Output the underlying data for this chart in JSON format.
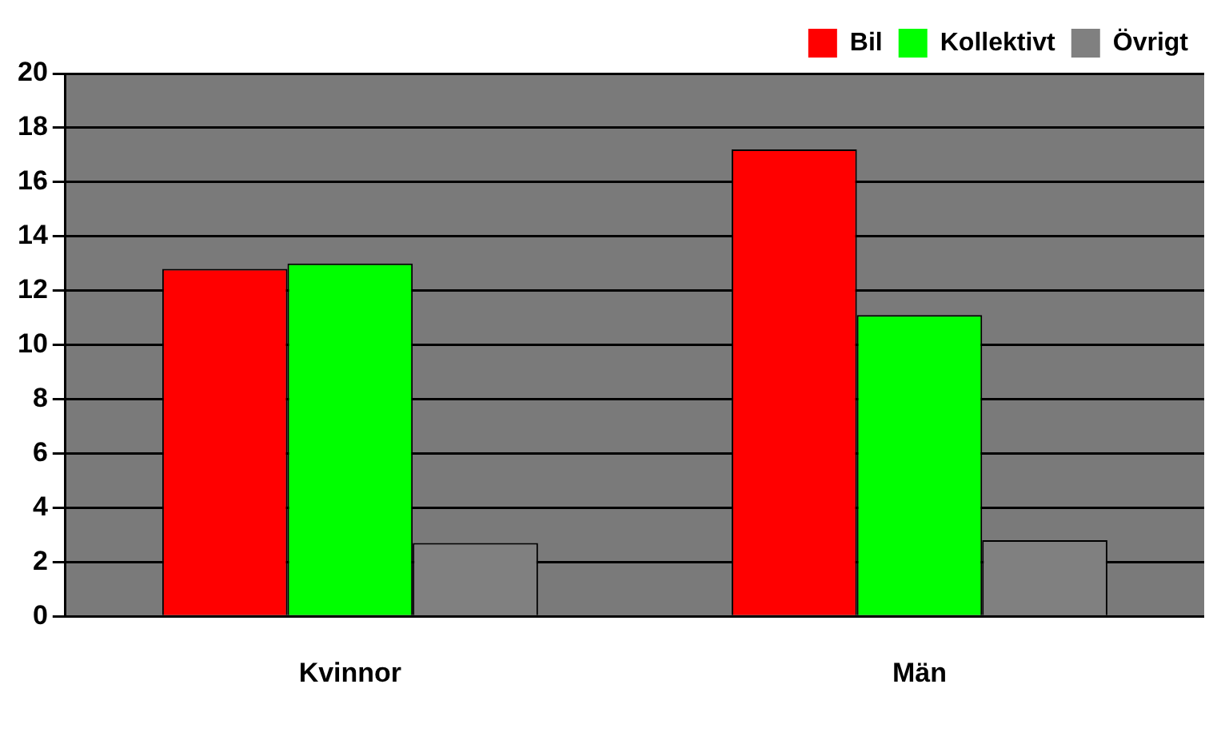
{
  "chart_data": {
    "type": "bar",
    "categories": [
      "Kvinnor",
      "Män"
    ],
    "series": [
      {
        "name": "Bil",
        "color": "#ff0000",
        "values": [
          12.8,
          17.2
        ]
      },
      {
        "name": "Kollektivt",
        "color": "#00ff00",
        "values": [
          13.0,
          11.1
        ]
      },
      {
        "name": "Övrigt",
        "color": "#808080",
        "values": [
          2.7,
          2.8
        ]
      }
    ],
    "ylim": [
      0,
      20
    ],
    "yticks": [
      0,
      2,
      4,
      6,
      8,
      10,
      12,
      14,
      16,
      18,
      20
    ],
    "grid": "y",
    "legend": "top right"
  }
}
